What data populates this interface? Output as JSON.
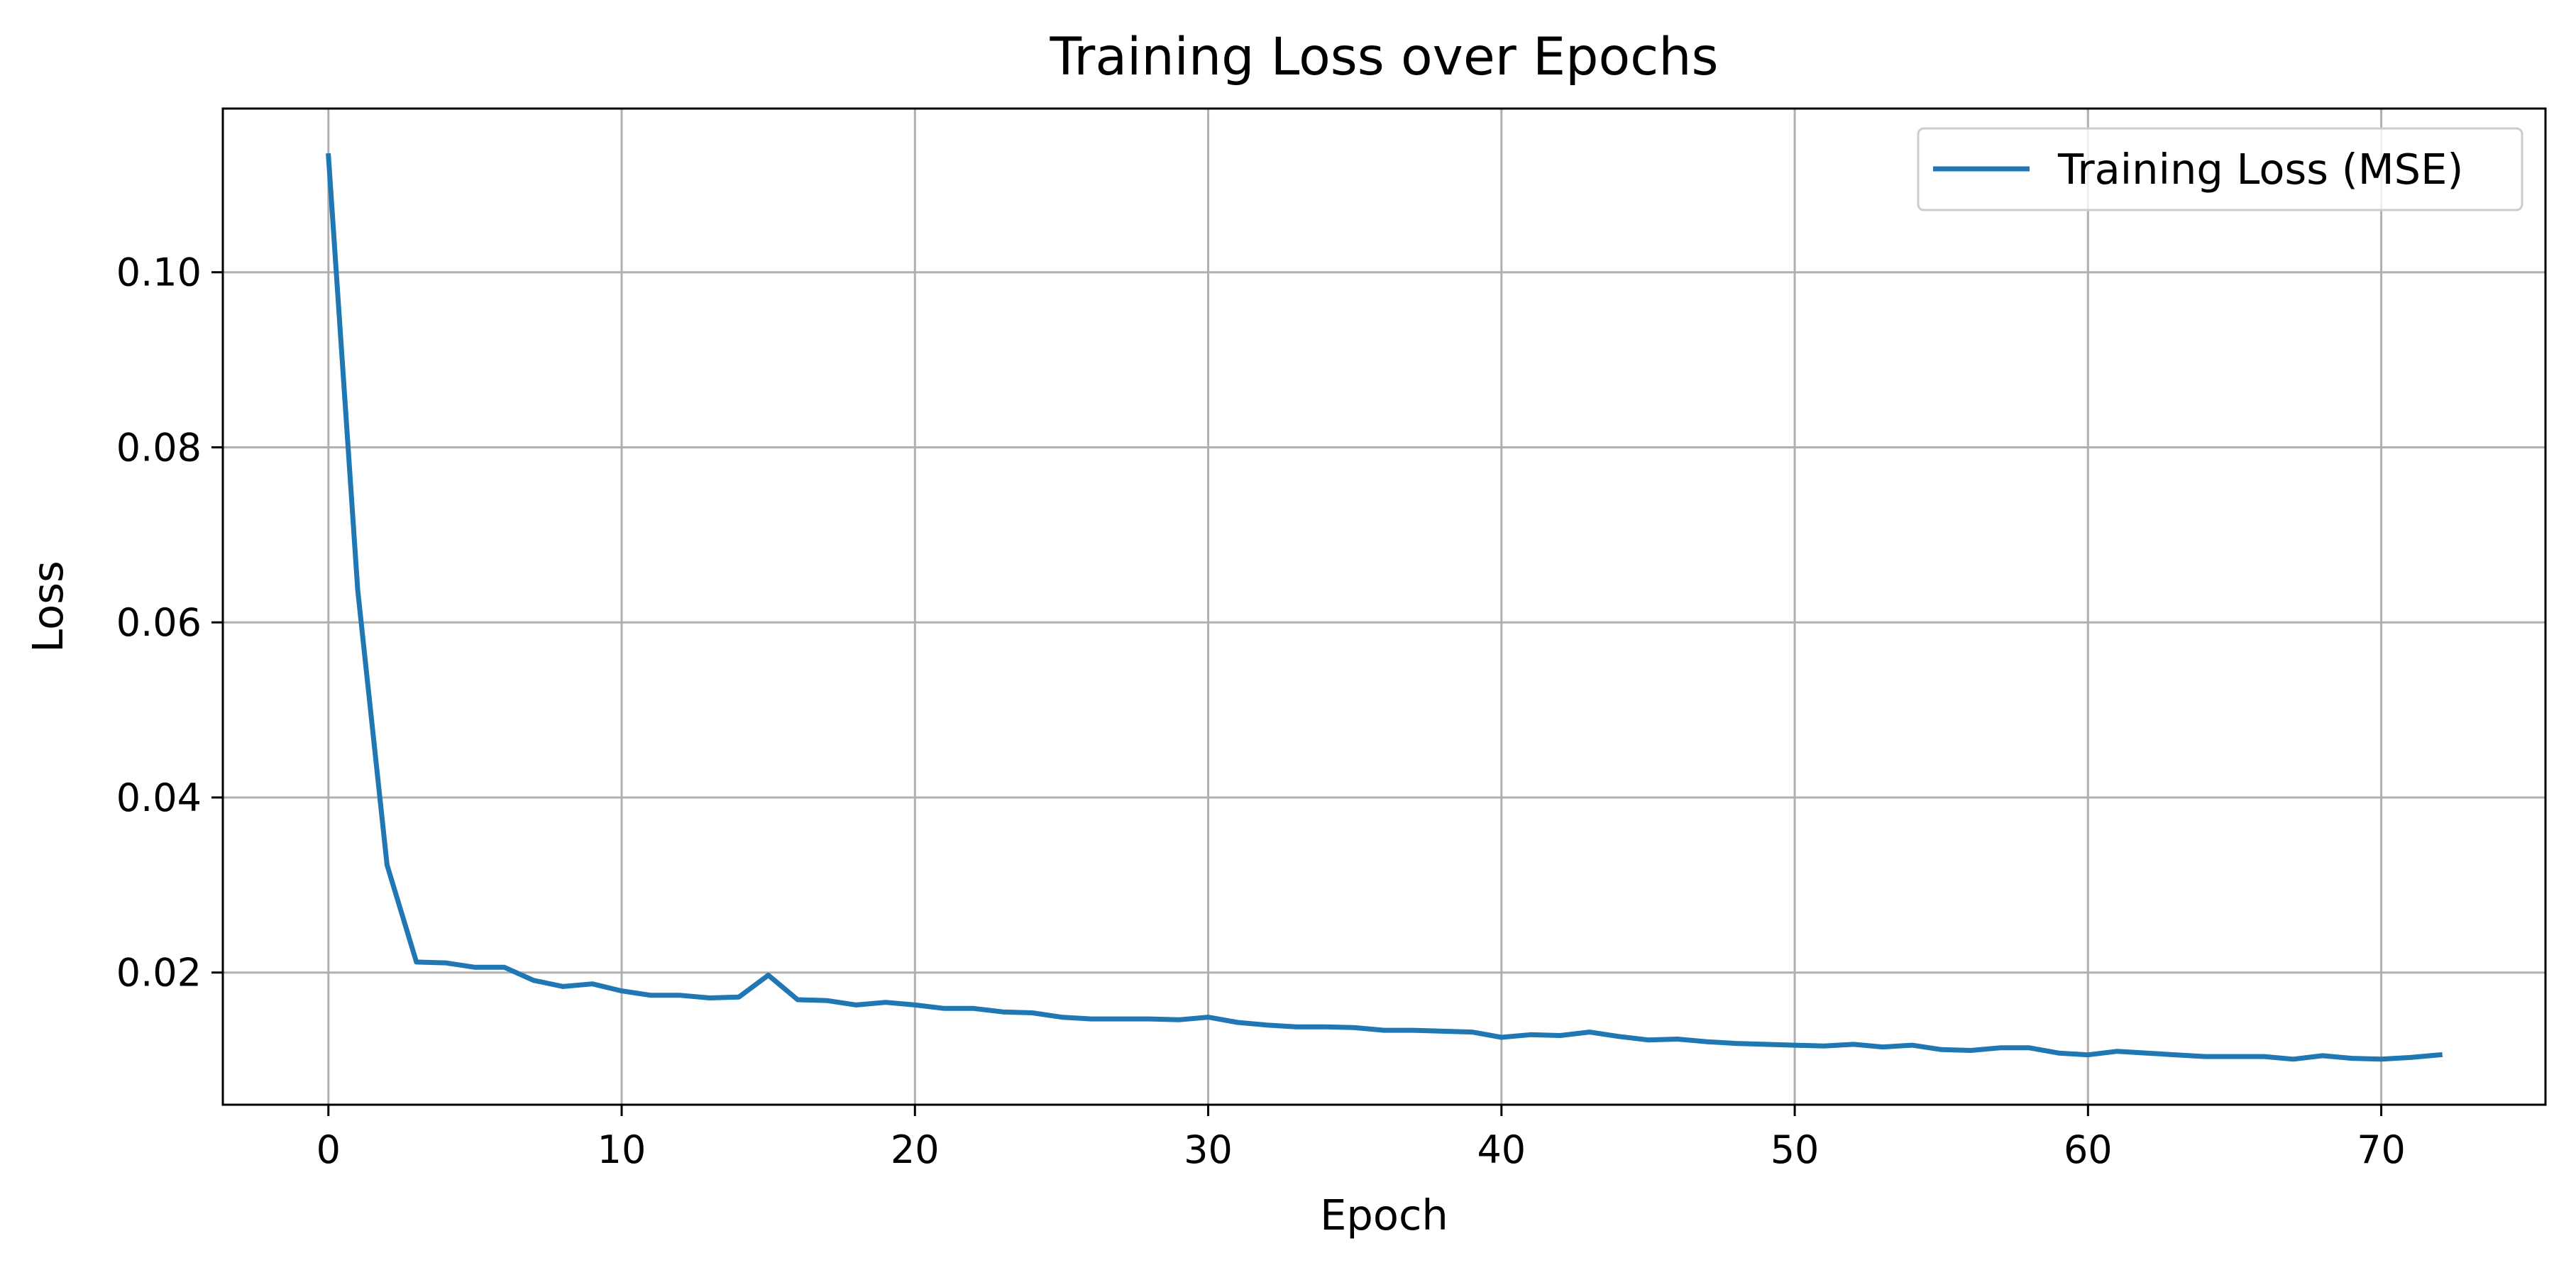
{
  "chart_data": {
    "type": "line",
    "title": "Training Loss over Epochs",
    "xlabel": "Epoch",
    "ylabel": "Loss",
    "xlim": [
      -3.6,
      75.6
    ],
    "ylim": [
      0.0049,
      0.1187
    ],
    "xticks": [
      0,
      10,
      20,
      30,
      40,
      50,
      60,
      70
    ],
    "yticks": [
      0.02,
      0.04,
      0.06,
      0.08,
      0.1
    ],
    "ytick_labels": [
      "0.02",
      "0.04",
      "0.06",
      "0.08",
      "0.10"
    ],
    "grid": true,
    "legend_position": "top-right",
    "color": "#1f77b4",
    "series": [
      {
        "name": "Training Loss (MSE)",
        "x": [
          0,
          1,
          2,
          3,
          4,
          5,
          6,
          7,
          8,
          9,
          10,
          11,
          12,
          13,
          14,
          15,
          16,
          17,
          18,
          19,
          20,
          21,
          22,
          23,
          24,
          25,
          26,
          27,
          28,
          29,
          30,
          31,
          32,
          33,
          34,
          35,
          36,
          37,
          38,
          39,
          40,
          41,
          42,
          43,
          44,
          45,
          46,
          47,
          48,
          49,
          50,
          51,
          52,
          53,
          54,
          55,
          56,
          57,
          58,
          59,
          60,
          61,
          62,
          63,
          64,
          65,
          66,
          67,
          68,
          69,
          70,
          71,
          72
        ],
        "values": [
          0.1133,
          0.0637,
          0.0323,
          0.0212,
          0.0211,
          0.0206,
          0.0206,
          0.0191,
          0.0184,
          0.0187,
          0.0179,
          0.0174,
          0.0174,
          0.0171,
          0.0172,
          0.0197,
          0.0169,
          0.0168,
          0.0163,
          0.0166,
          0.0163,
          0.0159,
          0.0159,
          0.0155,
          0.0154,
          0.0149,
          0.0147,
          0.0147,
          0.0147,
          0.0146,
          0.0149,
          0.0143,
          0.014,
          0.0138,
          0.0138,
          0.0137,
          0.0134,
          0.0134,
          0.0133,
          0.0132,
          0.0126,
          0.0129,
          0.0128,
          0.0132,
          0.0127,
          0.0123,
          0.0124,
          0.0121,
          0.0119,
          0.0118,
          0.0117,
          0.0116,
          0.0118,
          0.0115,
          0.0117,
          0.0112,
          0.0111,
          0.0114,
          0.0114,
          0.0108,
          0.0106,
          0.011,
          0.0108,
          0.0106,
          0.0104,
          0.0104,
          0.0104,
          0.0101,
          0.0105,
          0.0102,
          0.0101,
          0.0103,
          0.0106
        ]
      }
    ]
  }
}
